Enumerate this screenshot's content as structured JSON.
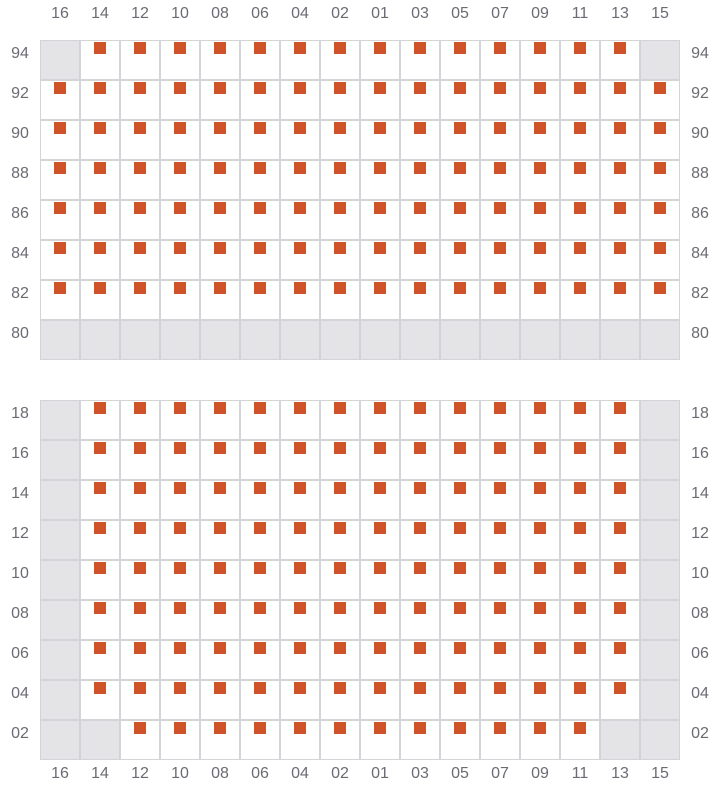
{
  "colors": {
    "marker": "#cf5229",
    "unavailable": "#e4e4e7",
    "grid_line": "#d4d4d8",
    "label": "#6b6b73"
  },
  "columns": [
    "16",
    "14",
    "12",
    "10",
    "08",
    "06",
    "04",
    "02",
    "01",
    "03",
    "05",
    "07",
    "09",
    "11",
    "13",
    "15"
  ],
  "legend_codes": {
    "s": "marked",
    "x": "unavailable",
    ".": "empty"
  },
  "sections": [
    {
      "rows": [
        {
          "label": "94",
          "cells": "xssssssssssssssx"
        },
        {
          "label": "92",
          "cells": "ssssssssssssssss"
        },
        {
          "label": "90",
          "cells": "ssssssssssssssss"
        },
        {
          "label": "88",
          "cells": "ssssssssssssssss"
        },
        {
          "label": "86",
          "cells": "ssssssssssssssss"
        },
        {
          "label": "84",
          "cells": "ssssssssssssssss"
        },
        {
          "label": "82",
          "cells": "ssssssssssssssss"
        },
        {
          "label": "80",
          "cells": "xxxxxxxxxxxxxxxx"
        }
      ]
    },
    {
      "rows": [
        {
          "label": "18",
          "cells": "xssssssssssssssx"
        },
        {
          "label": "16",
          "cells": "xssssssssssssssx"
        },
        {
          "label": "14",
          "cells": "xssssssssssssssx"
        },
        {
          "label": "12",
          "cells": "xssssssssssssssx"
        },
        {
          "label": "10",
          "cells": "xssssssssssssssx"
        },
        {
          "label": "08",
          "cells": "xssssssssssssssx"
        },
        {
          "label": "06",
          "cells": "xssssssssssssssx"
        },
        {
          "label": "04",
          "cells": "xssssssssssssssx"
        },
        {
          "label": "02",
          "cells": "xxssssssssssssxx"
        }
      ]
    }
  ]
}
